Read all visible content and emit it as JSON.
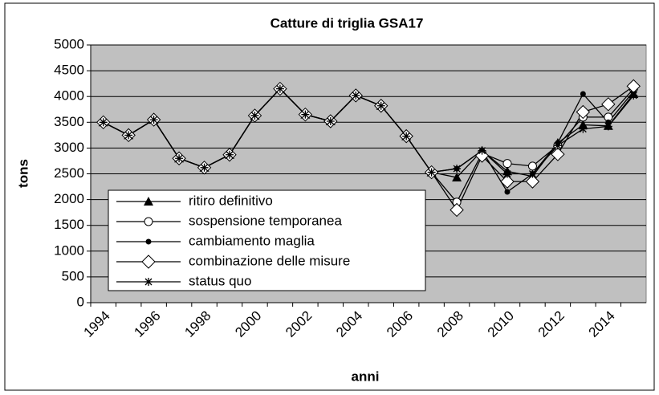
{
  "chart_data": {
    "type": "line",
    "title": "Catture di triglia GSA17",
    "xlabel": "anni",
    "ylabel": "tons",
    "categories": [
      "1994",
      null,
      "1996",
      null,
      "1998",
      null,
      "2000",
      null,
      "2002",
      null,
      "2004",
      null,
      "2006",
      null,
      "2008",
      null,
      "2010",
      null,
      "2012",
      null,
      "2014",
      null
    ],
    "ylim": [
      0,
      5000
    ],
    "yticks": [
      0,
      500,
      1000,
      1500,
      2000,
      2500,
      3000,
      3500,
      4000,
      4500,
      5000
    ],
    "grid": true,
    "series": [
      {
        "name": "ritiro definitivo",
        "color": "#000000",
        "marker": "triangle",
        "values": [
          3500,
          3250,
          3550,
          2800,
          2620,
          2870,
          3630,
          4150,
          3650,
          3520,
          4020,
          3820,
          3230,
          2530,
          2430,
          2950,
          2550,
          2450,
          3100,
          3450,
          3430,
          4050
        ]
      },
      {
        "name": "sospensione temporanea",
        "color": "#000000",
        "marker": "open-circle",
        "values": [
          3500,
          3250,
          3550,
          2800,
          2620,
          2870,
          3630,
          4150,
          3650,
          3520,
          4020,
          3820,
          3230,
          2530,
          1950,
          2900,
          2700,
          2650,
          3050,
          3600,
          3600,
          4150
        ]
      },
      {
        "name": "cambiamento maglia",
        "color": "#000000",
        "marker": "dot",
        "values": [
          3500,
          3250,
          3550,
          2800,
          2620,
          2870,
          3630,
          4150,
          3650,
          3520,
          4020,
          3820,
          3230,
          2530,
          2600,
          2950,
          2150,
          2500,
          3100,
          4050,
          3500,
          4100
        ]
      },
      {
        "name": "combinazione delle misure",
        "color": "#000000",
        "marker": "open-diamond",
        "values": [
          3500,
          3250,
          3550,
          2800,
          2620,
          2870,
          3630,
          4150,
          3650,
          3520,
          4020,
          3820,
          3230,
          2530,
          1800,
          2850,
          2350,
          2350,
          2880,
          3700,
          3850,
          4200
        ]
      },
      {
        "name": "status quo",
        "color": "#000000",
        "marker": "asterisk",
        "values": [
          3500,
          3250,
          3550,
          2800,
          2620,
          2870,
          3630,
          4150,
          3650,
          3520,
          4020,
          3820,
          3230,
          2530,
          2600,
          2950,
          2500,
          2500,
          3050,
          3370,
          3420,
          4020
        ]
      }
    ]
  }
}
